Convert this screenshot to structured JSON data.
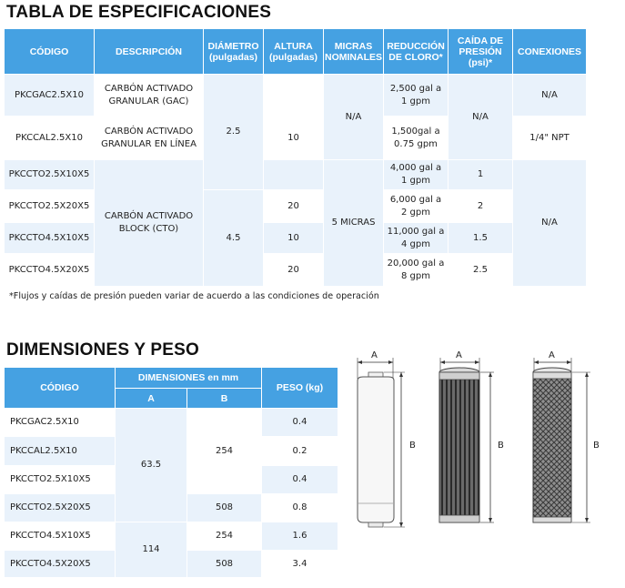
{
  "spec": {
    "title": "TABLA DE ESPECIFICACIONES",
    "headers": {
      "codigo": "CÓDIGO",
      "descripcion": "DESCRIPCIÓN",
      "diametro": "DIÁMETRO",
      "diametro_unit": "(pulgadas)",
      "altura": "ALTURA",
      "altura_unit": "(pulgadas)",
      "micras_1": "MICRAS",
      "micras_2": "NOMINALES",
      "reduccion_1": "REDUCCIÓN",
      "reduccion_2": "DE CLORO*",
      "caida_1": "CAÍDA DE",
      "caida_2": "PRESIÓN",
      "caida_3": "(psi)*",
      "conexiones": "CONEXIONES"
    },
    "rows": [
      {
        "codigo": "PKCGAC2.5X10",
        "reduccion_1": "2,500 gal a",
        "reduccion_2": "1 gpm"
      },
      {
        "codigo": "PKCCAL2.5X10",
        "reduccion_1": "1,500gal a",
        "reduccion_2": "0.75 gpm"
      },
      {
        "codigo": "PKCCTO2.5X10X5",
        "reduccion_1": "4,000 gal a",
        "reduccion_2": "1 gpm",
        "caida": "1"
      },
      {
        "codigo": "PKCCTO2.5X20X5",
        "reduccion_1": "6,000 gal a",
        "reduccion_2": "2 gpm",
        "caida": "2"
      },
      {
        "codigo": "PKCCTO4.5X10X5",
        "reduccion_1": "11,000 gal a",
        "reduccion_2": "4 gpm",
        "caida": "1.5"
      },
      {
        "codigo": "PKCCTO4.5X20X5",
        "reduccion_1": "20,000 gal a",
        "reduccion_2": "8 gpm",
        "caida": "2.5"
      }
    ],
    "desc_gac_1": "CARBÓN ACTIVADO",
    "desc_gac_2": "GRANULAR (GAC)",
    "desc_cal_1": "CARBÓN ACTIVADO",
    "desc_cal_2": "GRANULAR EN LÍNEA",
    "desc_cto_1": "CARBÓN ACTIVADO",
    "desc_cto_2": "BLOCK (CTO)",
    "diam_25": "2.5",
    "diam_45": "4.5",
    "alt_10a": "10",
    "alt_20a": "20",
    "alt_10b": "10",
    "alt_20b": "20",
    "micras_na": "N/A",
    "micras_5": "5 MICRAS",
    "caida_na": "N/A",
    "con_na_1": "N/A",
    "con_npt": "1/4\" NPT",
    "con_na_2": "N/A",
    "note": "*Flujos y caídas de presión pueden variar de acuerdo a las condiciones de operación"
  },
  "dim": {
    "title": "DIMENSIONES Y PESO",
    "headers": {
      "codigo": "CÓDIGO",
      "dimensiones": "DIMENSIONES en mm",
      "a": "A",
      "b": "B",
      "peso": "PESO (kg)"
    },
    "rows": [
      {
        "codigo": "PKCGAC2.5X10",
        "peso": "0.4"
      },
      {
        "codigo": "PKCCAL2.5X10",
        "peso": "0.2"
      },
      {
        "codigo": "PKCCTO2.5X10X5",
        "peso": "0.4"
      },
      {
        "codigo": "PKCCTO2.5X20X5",
        "peso": "0.8"
      },
      {
        "codigo": "PKCCTO4.5X10X5",
        "peso": "1.6"
      },
      {
        "codigo": "PKCCTO4.5X20X5",
        "peso": "3.4"
      }
    ],
    "a_635": "63.5",
    "a_114": "114",
    "b_254a": "254",
    "b_508a": "508",
    "b_254b": "254",
    "b_508b": "508"
  },
  "figure": {
    "label_a": "A",
    "label_b": "B"
  },
  "colors": {
    "header_blue": "#45a1e2",
    "row_tint": "#e9f2fb"
  }
}
